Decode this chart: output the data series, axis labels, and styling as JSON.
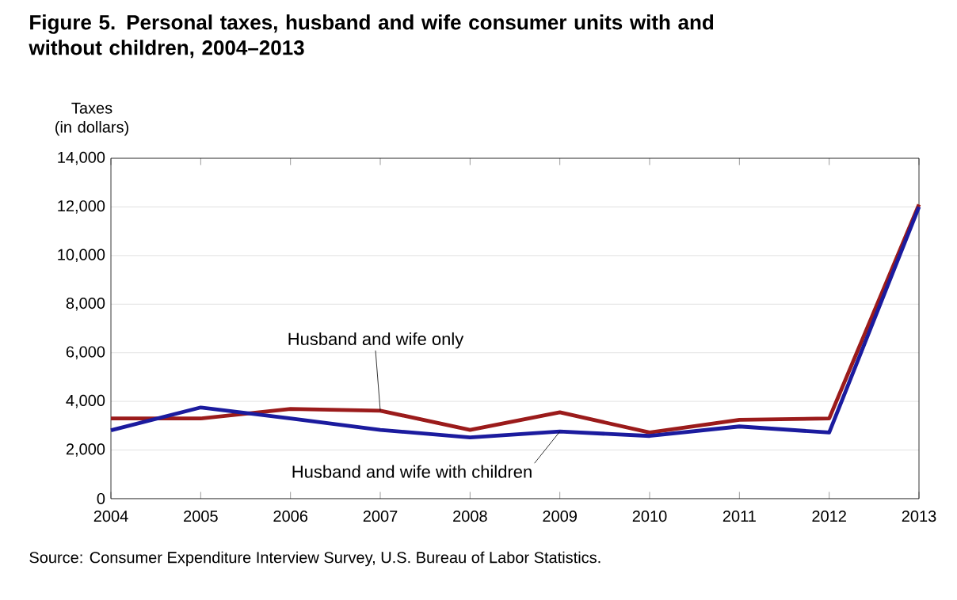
{
  "chart_data": {
    "type": "line",
    "title": "Figure 5. Personal taxes, husband and wife consumer units with and without children, 2004–2013",
    "ylabel": "Taxes\n(in dollars)",
    "x": [
      2004,
      2005,
      2006,
      2007,
      2008,
      2009,
      2010,
      2011,
      2012,
      2013
    ],
    "series": [
      {
        "color": "#9b1b1b",
        "values": [
          3300,
          3300,
          3690,
          3620,
          2830,
          3550,
          2720,
          3240,
          3300,
          12100
        ]
      },
      {
        "color": "#1b1b9e",
        "values": [
          2810,
          3750,
          3300,
          2830,
          2520,
          2760,
          2580,
          2970,
          2720,
          12000
        ]
      }
    ],
    "xlim": [
      2004,
      2013
    ],
    "xticks": [
      2004,
      2005,
      2006,
      2007,
      2008,
      2009,
      2010,
      2011,
      2012,
      2013
    ],
    "ylim": [
      0,
      14000
    ],
    "yticks": [
      0,
      {
        "value": 2000,
        "label": "2,000"
      },
      {
        "value": 4000,
        "label": "4,000"
      },
      {
        "value": 6000,
        "label": "6,000"
      },
      {
        "value": 8000,
        "label": "8,000"
      },
      {
        "value": 10000,
        "label": "10,000"
      },
      {
        "value": 12000,
        "label": "12,000"
      },
      {
        "value": 14000,
        "label": "14,000"
      }
    ],
    "grid": "y",
    "marker": "none",
    "line_style": "solid",
    "annotations": [
      {
        "text": "Husband and wife only",
        "x": 2007,
        "y": 3620
      },
      {
        "text": "Husband and wife with children",
        "x": 2009,
        "y": 2760
      },
      "Source: Consumer Expenditure Interview Survey, U.S. Bureau of Labor Statistics."
    ]
  }
}
